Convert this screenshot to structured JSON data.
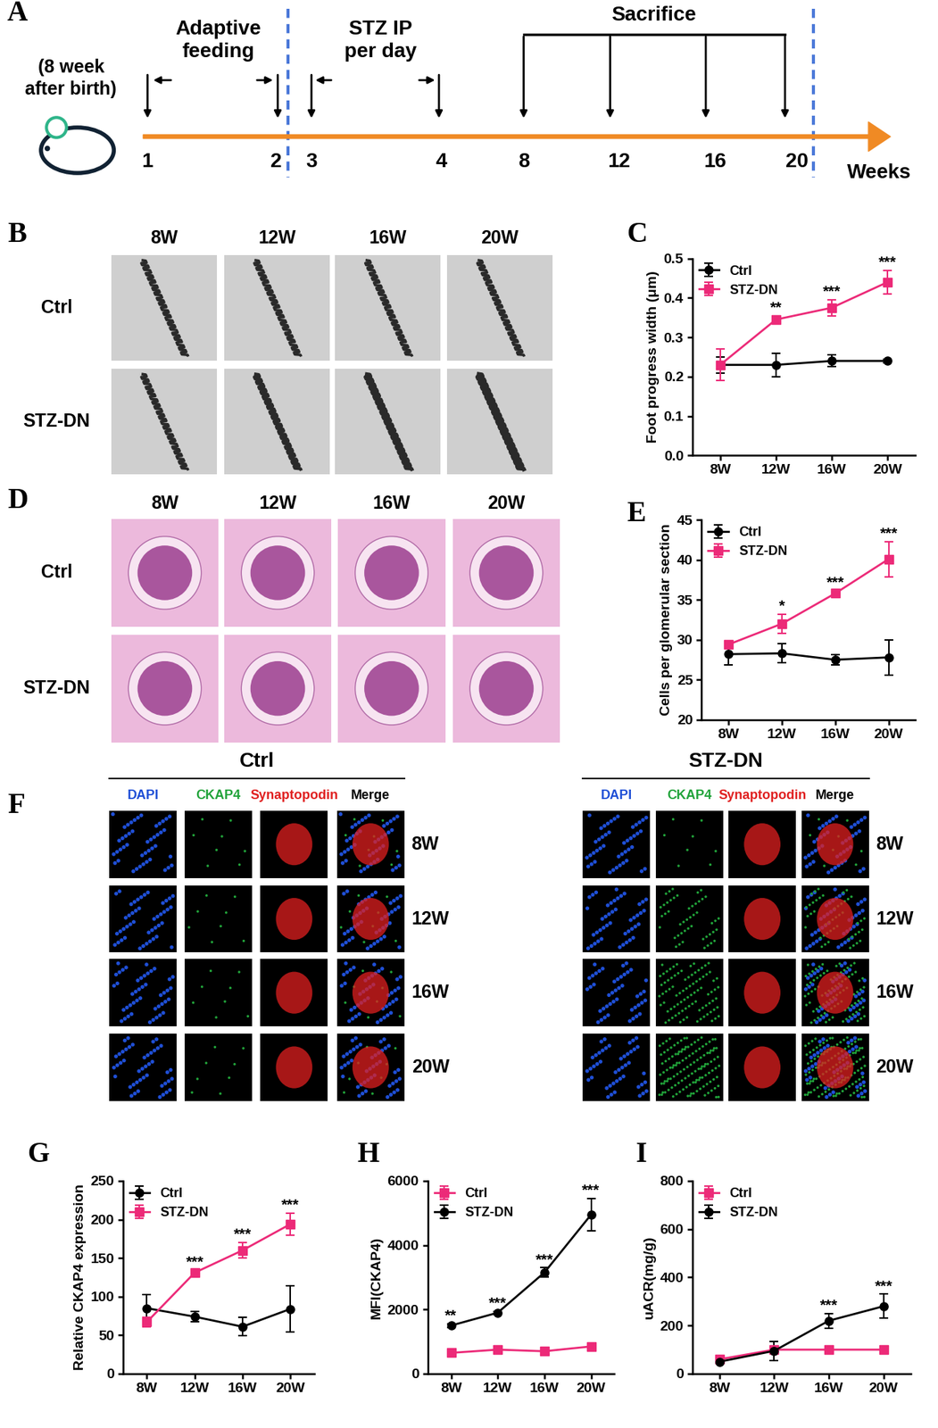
{
  "timeline": {
    "panel": "A",
    "start_note": "(8 week\nafter birth)",
    "phases": [
      "Adaptive\nfeeding",
      "STZ IP\nper day",
      "Sacrifice"
    ],
    "ticks": [
      "1",
      "2",
      "3",
      "4",
      "8",
      "12",
      "16",
      "20"
    ],
    "unit": "Weeks"
  },
  "em_images": {
    "panel": "B",
    "columns": [
      "8W",
      "12W",
      "16W",
      "20W"
    ],
    "rows": [
      "Ctrl",
      "STZ-DN"
    ]
  },
  "he_images": {
    "panel": "D",
    "columns": [
      "8W",
      "12W",
      "16W",
      "20W"
    ],
    "rows": [
      "Ctrl",
      "STZ-DN"
    ]
  },
  "if_images": {
    "panel": "F",
    "groups": [
      "Ctrl",
      "STZ-DN"
    ],
    "channels": [
      {
        "name": "DAPI",
        "color": "#1f4fd6"
      },
      {
        "name": "CKAP4",
        "color": "#21a33a"
      },
      {
        "name": "Synaptopodin",
        "color": "#e02020"
      },
      {
        "name": "Merge",
        "color": "#000000"
      }
    ],
    "rows": [
      "8W",
      "12W",
      "16W",
      "20W"
    ]
  },
  "chart_data": [
    {
      "type": "line",
      "panel": "C",
      "y_label": "Foot progress width (μm)",
      "categories": [
        "8W",
        "12W",
        "16W",
        "20W"
      ],
      "ylim": [
        0.0,
        0.5
      ],
      "yticks": [
        0.0,
        0.1,
        0.2,
        0.3,
        0.4,
        0.5
      ],
      "legend": "upper left",
      "series": [
        {
          "name": "Ctrl",
          "color": "#000000",
          "marker": "circle",
          "values": [
            0.23,
            0.23,
            0.24,
            0.24
          ],
          "errors": [
            0.02,
            0.03,
            0.015,
            0.005
          ]
        },
        {
          "name": "STZ-DN",
          "color": "#ec2a78",
          "marker": "square",
          "values": [
            0.23,
            0.345,
            0.375,
            0.44
          ],
          "errors": [
            0.04,
            0.01,
            0.02,
            0.03
          ]
        }
      ],
      "significance": [
        null,
        "**",
        "***",
        "***"
      ]
    },
    {
      "type": "line",
      "panel": "E",
      "y_label": "Cells per glomerular section",
      "categories": [
        "8W",
        "12W",
        "16W",
        "20W"
      ],
      "ylim": [
        20,
        45
      ],
      "yticks": [
        20,
        25,
        30,
        35,
        40,
        45
      ],
      "legend": "upper left",
      "series": [
        {
          "name": "Ctrl",
          "color": "#000000",
          "marker": "circle",
          "values": [
            28.2,
            28.3,
            27.5,
            27.8
          ],
          "errors": [
            1.3,
            1.2,
            0.6,
            2.2
          ]
        },
        {
          "name": "STZ-DN",
          "color": "#ec2a78",
          "marker": "square",
          "values": [
            29.4,
            32.0,
            35.8,
            40.1
          ],
          "errors": [
            0.3,
            1.2,
            0.3,
            2.2
          ]
        }
      ],
      "significance": [
        null,
        "*",
        "***",
        "***"
      ]
    },
    {
      "type": "line",
      "panel": "G",
      "y_label": "Relative CKAP4 expression",
      "categories": [
        "8W",
        "12W",
        "16W",
        "20W"
      ],
      "ylim": [
        0,
        250
      ],
      "yticks": [
        0,
        50,
        100,
        150,
        200,
        250
      ],
      "legend": "upper left",
      "series": [
        {
          "name": "Ctrl",
          "color": "#000000",
          "marker": "circle",
          "values": [
            85,
            74,
            61,
            84
          ],
          "errors": [
            18,
            7,
            12,
            30
          ]
        },
        {
          "name": "STZ-DN",
          "color": "#ec2a78",
          "marker": "square",
          "values": [
            67,
            131,
            160,
            194
          ],
          "errors": [
            6,
            3,
            10,
            14
          ]
        }
      ],
      "significance": [
        null,
        "***",
        "***",
        "***"
      ]
    },
    {
      "type": "line",
      "panel": "H",
      "y_label": "MFI(CKAP4)",
      "categories": [
        "8W",
        "12W",
        "16W",
        "20W"
      ],
      "ylim": [
        0,
        6000
      ],
      "yticks": [
        0,
        2000,
        4000,
        6000
      ],
      "legend": "upper left",
      "series": [
        {
          "name": "Ctrl",
          "color": "#ec2a78",
          "marker": "square",
          "values": [
            650,
            750,
            700,
            850
          ],
          "errors": [
            30,
            40,
            30,
            50
          ]
        },
        {
          "name": "STZ-DN",
          "color": "#000000",
          "marker": "circle",
          "values": [
            1500,
            1900,
            3150,
            4950
          ],
          "errors": [
            60,
            50,
            150,
            500
          ]
        }
      ],
      "significance": [
        "**",
        "***",
        "***",
        "***"
      ]
    },
    {
      "type": "line",
      "panel": "I",
      "y_label": "uACR(mg/g)",
      "categories": [
        "8W",
        "12W",
        "16W",
        "20W"
      ],
      "ylim": [
        0,
        800
      ],
      "yticks": [
        0,
        200,
        400,
        600,
        800
      ],
      "legend": "upper left",
      "series": [
        {
          "name": "Ctrl",
          "color": "#ec2a78",
          "marker": "square",
          "values": [
            60,
            100,
            100,
            100
          ],
          "errors": [
            5,
            5,
            5,
            5
          ]
        },
        {
          "name": "STZ-DN",
          "color": "#000000",
          "marker": "circle",
          "values": [
            50,
            95,
            220,
            280
          ],
          "errors": [
            8,
            40,
            30,
            50
          ]
        }
      ],
      "significance": [
        null,
        null,
        "***",
        "***"
      ]
    }
  ]
}
